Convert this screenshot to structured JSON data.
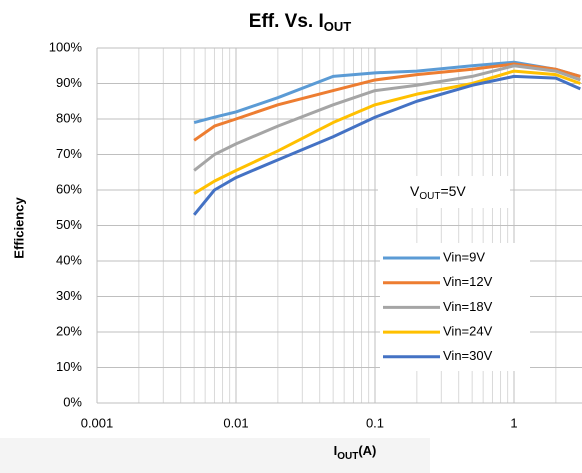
{
  "chart_data": {
    "type": "line",
    "title": [
      "Eff. Vs. I",
      "OUT"
    ],
    "x_label": [
      "I",
      "OUT",
      "(A)"
    ],
    "y_label": "Efficiency",
    "annotation": [
      "V",
      "OUT",
      "=5V"
    ],
    "x_scale": "log",
    "xlim": [
      0.001,
      3
    ],
    "xticks": [
      0.001,
      0.01,
      0.1,
      1
    ],
    "ylim": [
      0,
      100
    ],
    "yticks": [
      {
        "value": 0,
        "label": "0%"
      },
      {
        "value": 10,
        "label": "10%"
      },
      {
        "value": 20,
        "label": "20%"
      },
      {
        "value": 30,
        "label": "30%"
      },
      {
        "value": 40,
        "label": "40%"
      },
      {
        "value": 50,
        "label": "50%"
      },
      {
        "value": 60,
        "label": "60%"
      },
      {
        "value": 70,
        "label": "70%"
      },
      {
        "value": 80,
        "label": "80%"
      },
      {
        "value": 90,
        "label": "90%"
      },
      {
        "value": 100,
        "label": "100%"
      }
    ],
    "grid": true,
    "legend": "lower right",
    "x": [
      0.005,
      0.007,
      0.01,
      0.02,
      0.05,
      0.1,
      0.2,
      0.5,
      1,
      2,
      3
    ],
    "series": [
      {
        "name": "Vin=9V",
        "color": "#5b9bd5",
        "values": [
          79,
          80.5,
          82,
          86,
          92,
          93,
          93.5,
          95,
          96,
          94,
          92
        ]
      },
      {
        "name": "Vin=12V",
        "color": "#ed7d31",
        "values": [
          74,
          78,
          80,
          84,
          88,
          91,
          92.5,
          94,
          95.5,
          94,
          92
        ]
      },
      {
        "name": "Vin=18V",
        "color": "#a5a5a5",
        "values": [
          65.5,
          70,
          73,
          78,
          84,
          88,
          89.5,
          92,
          95,
          93.5,
          91
        ]
      },
      {
        "name": "Vin=24V",
        "color": "#ffc000",
        "values": [
          59,
          62.5,
          65.5,
          71,
          79,
          84,
          87,
          90,
          93.5,
          92.5,
          90
        ]
      },
      {
        "name": "Vin=30V",
        "color": "#4472c4",
        "values": [
          53,
          60,
          63.5,
          68.5,
          75,
          80.5,
          85,
          89.5,
          92,
          91.5,
          88.5
        ]
      }
    ]
  }
}
